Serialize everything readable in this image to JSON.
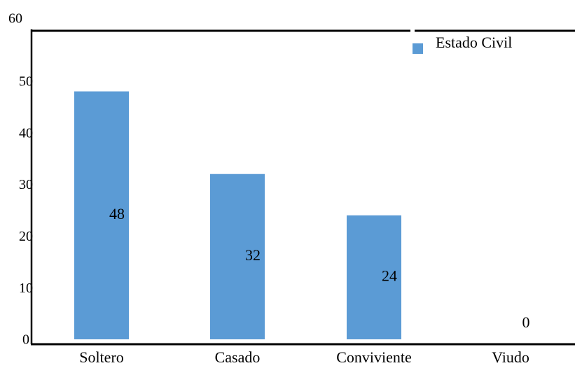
{
  "chart_data": {
    "type": "bar",
    "categories": [
      "Soltero",
      "Casado",
      "Conviviente",
      "Viudo"
    ],
    "series": [
      {
        "name": "Estado Civil",
        "values": [
          48,
          32,
          24,
          0
        ],
        "color": "#5b9bd5"
      }
    ],
    "data_labels": [
      "48",
      "32",
      "24",
      "0"
    ],
    "yticks": [
      "0",
      "10",
      "20",
      "30",
      "40",
      "50",
      "60"
    ],
    "ylim": [
      0,
      60
    ],
    "legend_position": "top-right",
    "grid": false
  }
}
